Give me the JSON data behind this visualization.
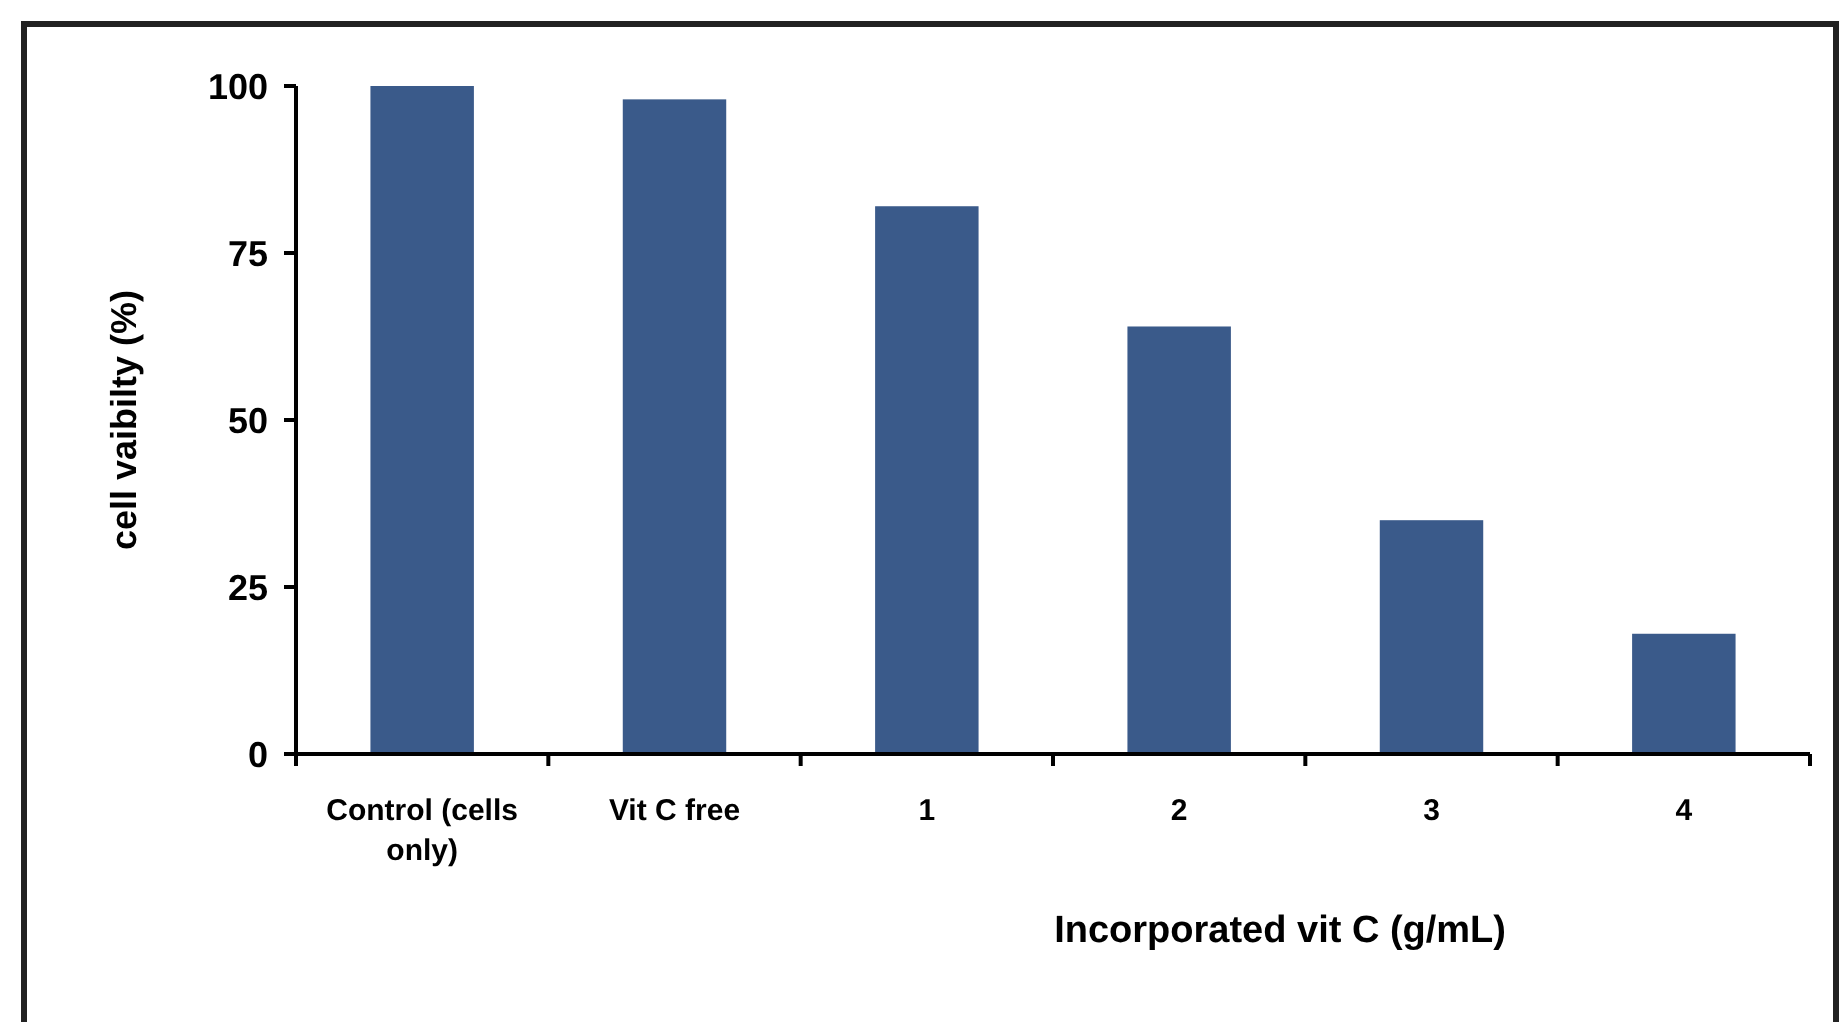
{
  "chart_data": {
    "type": "bar",
    "xlabel": "Incorporated vit C (g/mL)",
    "ylabel": "cell vaibilty (%)",
    "categories": [
      "Control (cells only)",
      "Vit C free",
      "1",
      "2",
      "3",
      "4"
    ],
    "values": [
      100,
      98,
      82,
      64,
      35,
      18
    ],
    "color": "#3a5a8a",
    "ylim": [
      0,
      100
    ],
    "yticks": [
      0,
      25,
      50,
      75,
      100
    ],
    "grid": false
  }
}
